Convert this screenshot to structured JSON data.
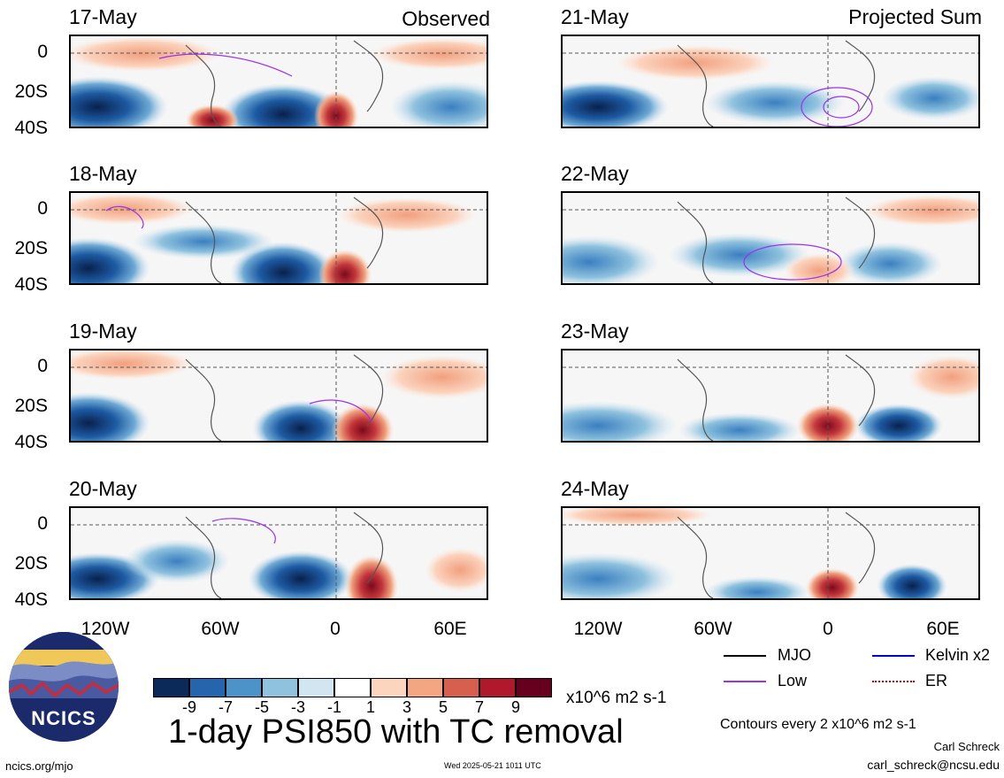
{
  "panels": {
    "observed_tag": "Observed",
    "projected_tag": "Projected Sum",
    "left_dates": [
      "17-May",
      "18-May",
      "19-May",
      "20-May"
    ],
    "right_dates": [
      "21-May",
      "22-May",
      "23-May",
      "24-May"
    ]
  },
  "axes": {
    "lat_ticks": [
      "0",
      "20S",
      "40S"
    ],
    "lon_ticks": [
      "120W",
      "60W",
      "0",
      "60E"
    ]
  },
  "legend": {
    "mjo": "MJO",
    "kelvin": "Kelvin x2",
    "low": "Low",
    "er": "ER",
    "colors": {
      "mjo": "#000000",
      "kelvin": "#0000cc",
      "low": "#9933ee",
      "er": "#cc0000"
    }
  },
  "colorbar": {
    "colors": [
      "#0b2a5a",
      "#2565ae",
      "#4c93c9",
      "#8fc2de",
      "#d2e6f1",
      "#ffffff",
      "#fcd5bf",
      "#f4a582",
      "#d6604d",
      "#b2182b",
      "#67001f"
    ],
    "tick_labels": [
      "-9",
      "-7",
      "-5",
      "-3",
      "-1",
      "1",
      "3",
      "5",
      "7",
      "9"
    ],
    "units": "x10^6 m2 s-1"
  },
  "title": "1-day PSI850 with TC removal",
  "contour_note": "Contours every 2 x10^6 m2 s-1",
  "author": "Carl Schreck",
  "email": "carl_schreck@ncsu.edu",
  "site": "ncics.org/mjo",
  "timestamp": "Wed 2025-05-21 1011 UTC",
  "logo_text": "NCICS"
}
